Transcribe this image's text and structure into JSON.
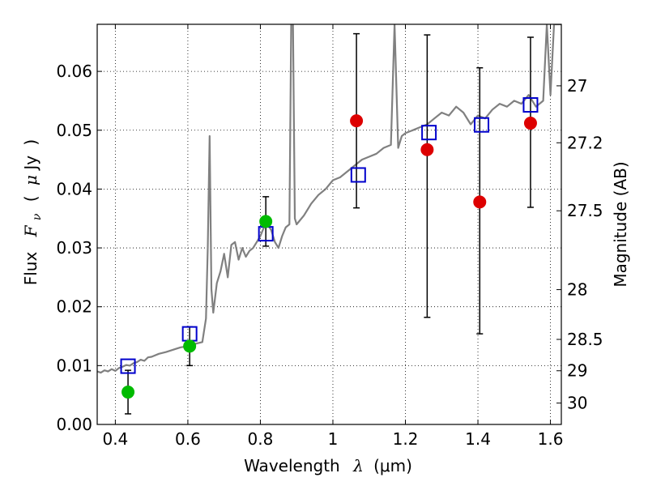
{
  "chart_data": {
    "type": "scatter",
    "xlabel": "Wavelength  λ (μm)",
    "xlabel_parts": {
      "main": "Wavelength",
      "symbol": "λ",
      "unit": "(μm)"
    },
    "ylabel": "Flux  Fν ( μJy )",
    "ylabel_parts": {
      "main": "Flux",
      "symbol": "F",
      "subscript": "ν",
      "unit_open": "(",
      "unit_mu": "μ",
      "unit": "Jy",
      "unit_close": ")"
    },
    "y2label": "Magnitude (AB)",
    "xlim": [
      0.35,
      1.63
    ],
    "ylim": [
      0.0,
      0.068
    ],
    "grid": true,
    "x_ticks": [
      {
        "value": 0.4,
        "label": "0.4"
      },
      {
        "value": 0.6,
        "label": "0.6"
      },
      {
        "value": 0.8,
        "label": "0.8"
      },
      {
        "value": 1.0,
        "label": "1"
      },
      {
        "value": 1.2,
        "label": "1.2"
      },
      {
        "value": 1.4,
        "label": "1.4"
      },
      {
        "value": 1.6,
        "label": "1.6"
      }
    ],
    "y_ticks": [
      {
        "value": 0.0,
        "label": "0.00"
      },
      {
        "value": 0.01,
        "label": "0.01"
      },
      {
        "value": 0.02,
        "label": "0.02"
      },
      {
        "value": 0.03,
        "label": "0.03"
      },
      {
        "value": 0.04,
        "label": "0.04"
      },
      {
        "value": 0.05,
        "label": "0.05"
      },
      {
        "value": 0.06,
        "label": "0.06"
      }
    ],
    "y2_ticks": [
      {
        "mag": 27,
        "label": "27"
      },
      {
        "mag": 27.2,
        "label": "27.2"
      },
      {
        "mag": 27.5,
        "label": "27.5"
      },
      {
        "mag": 28,
        "label": "28"
      },
      {
        "mag": 28.5,
        "label": "28.5"
      },
      {
        "mag": 29,
        "label": "29"
      },
      {
        "mag": 30,
        "label": "30"
      }
    ],
    "series": [
      {
        "kind": "sed-model",
        "style": "line",
        "color": "#808080",
        "x": [
          0.35,
          0.36,
          0.37,
          0.38,
          0.39,
          0.4,
          0.41,
          0.42,
          0.43,
          0.44,
          0.45,
          0.46,
          0.47,
          0.48,
          0.49,
          0.5,
          0.52,
          0.54,
          0.56,
          0.58,
          0.6,
          0.62,
          0.64,
          0.65,
          0.655,
          0.66,
          0.665,
          0.67,
          0.68,
          0.69,
          0.7,
          0.71,
          0.72,
          0.73,
          0.74,
          0.75,
          0.76,
          0.77,
          0.78,
          0.79,
          0.8,
          0.81,
          0.82,
          0.83,
          0.84,
          0.85,
          0.86,
          0.87,
          0.88,
          0.885,
          0.89,
          0.895,
          0.9,
          0.92,
          0.94,
          0.96,
          0.98,
          1.0,
          1.02,
          1.04,
          1.06,
          1.08,
          1.1,
          1.12,
          1.14,
          1.16,
          1.17,
          1.18,
          1.19,
          1.2,
          1.22,
          1.24,
          1.26,
          1.28,
          1.3,
          1.32,
          1.34,
          1.36,
          1.38,
          1.4,
          1.42,
          1.44,
          1.46,
          1.48,
          1.5,
          1.52,
          1.54,
          1.56,
          1.58,
          1.59,
          1.6,
          1.61,
          1.62,
          1.63
        ],
        "y": [
          0.009,
          0.0088,
          0.0092,
          0.009,
          0.0094,
          0.0091,
          0.0096,
          0.0098,
          0.0101,
          0.01,
          0.0104,
          0.0106,
          0.011,
          0.0108,
          0.0114,
          0.0115,
          0.012,
          0.0123,
          0.0127,
          0.0131,
          0.0133,
          0.0137,
          0.014,
          0.018,
          0.03,
          0.049,
          0.023,
          0.019,
          0.024,
          0.026,
          0.029,
          0.025,
          0.0305,
          0.031,
          0.028,
          0.03,
          0.0285,
          0.0295,
          0.03,
          0.031,
          0.032,
          0.0335,
          0.034,
          0.033,
          0.031,
          0.03,
          0.032,
          0.0335,
          0.034,
          0.068,
          0.068,
          0.035,
          0.034,
          0.0355,
          0.0375,
          0.039,
          0.04,
          0.0415,
          0.042,
          0.043,
          0.044,
          0.045,
          0.0455,
          0.046,
          0.047,
          0.0475,
          0.068,
          0.047,
          0.049,
          0.0495,
          0.05,
          0.0505,
          0.051,
          0.052,
          0.053,
          0.0525,
          0.054,
          0.053,
          0.051,
          0.0525,
          0.052,
          0.0535,
          0.0545,
          0.054,
          0.055,
          0.0545,
          0.056,
          0.054,
          0.055,
          0.068,
          0.056,
          0.068,
          0.068,
          0.068
        ]
      },
      {
        "kind": "model-photometry",
        "style": "square",
        "color": "#0000cc",
        "x": [
          0.435,
          0.605,
          0.815,
          1.07,
          1.265,
          1.41,
          1.545
        ],
        "y": [
          0.0099,
          0.0154,
          0.0324,
          0.0424,
          0.0496,
          0.0509,
          0.0543
        ]
      },
      {
        "kind": "detections",
        "style": "circle",
        "color": "#00bb00",
        "x": [
          0.435,
          0.605,
          0.815
        ],
        "y": [
          0.0055,
          0.0133,
          0.0345
        ],
        "yerr_low": [
          0.0037,
          0.0033,
          0.0042
        ],
        "yerr_high": [
          0.0037,
          0.0033,
          0.0042
        ]
      },
      {
        "kind": "nir-points",
        "style": "circle",
        "color": "#dd0000",
        "x": [
          1.065,
          1.26,
          1.405,
          1.545
        ],
        "y": [
          0.0516,
          0.0467,
          0.0378,
          0.0512
        ],
        "yerr_low": [
          0.0148,
          0.0285,
          0.0224,
          0.0143
        ],
        "yerr_high": [
          0.0148,
          0.0195,
          0.0228,
          0.0146
        ]
      }
    ]
  }
}
